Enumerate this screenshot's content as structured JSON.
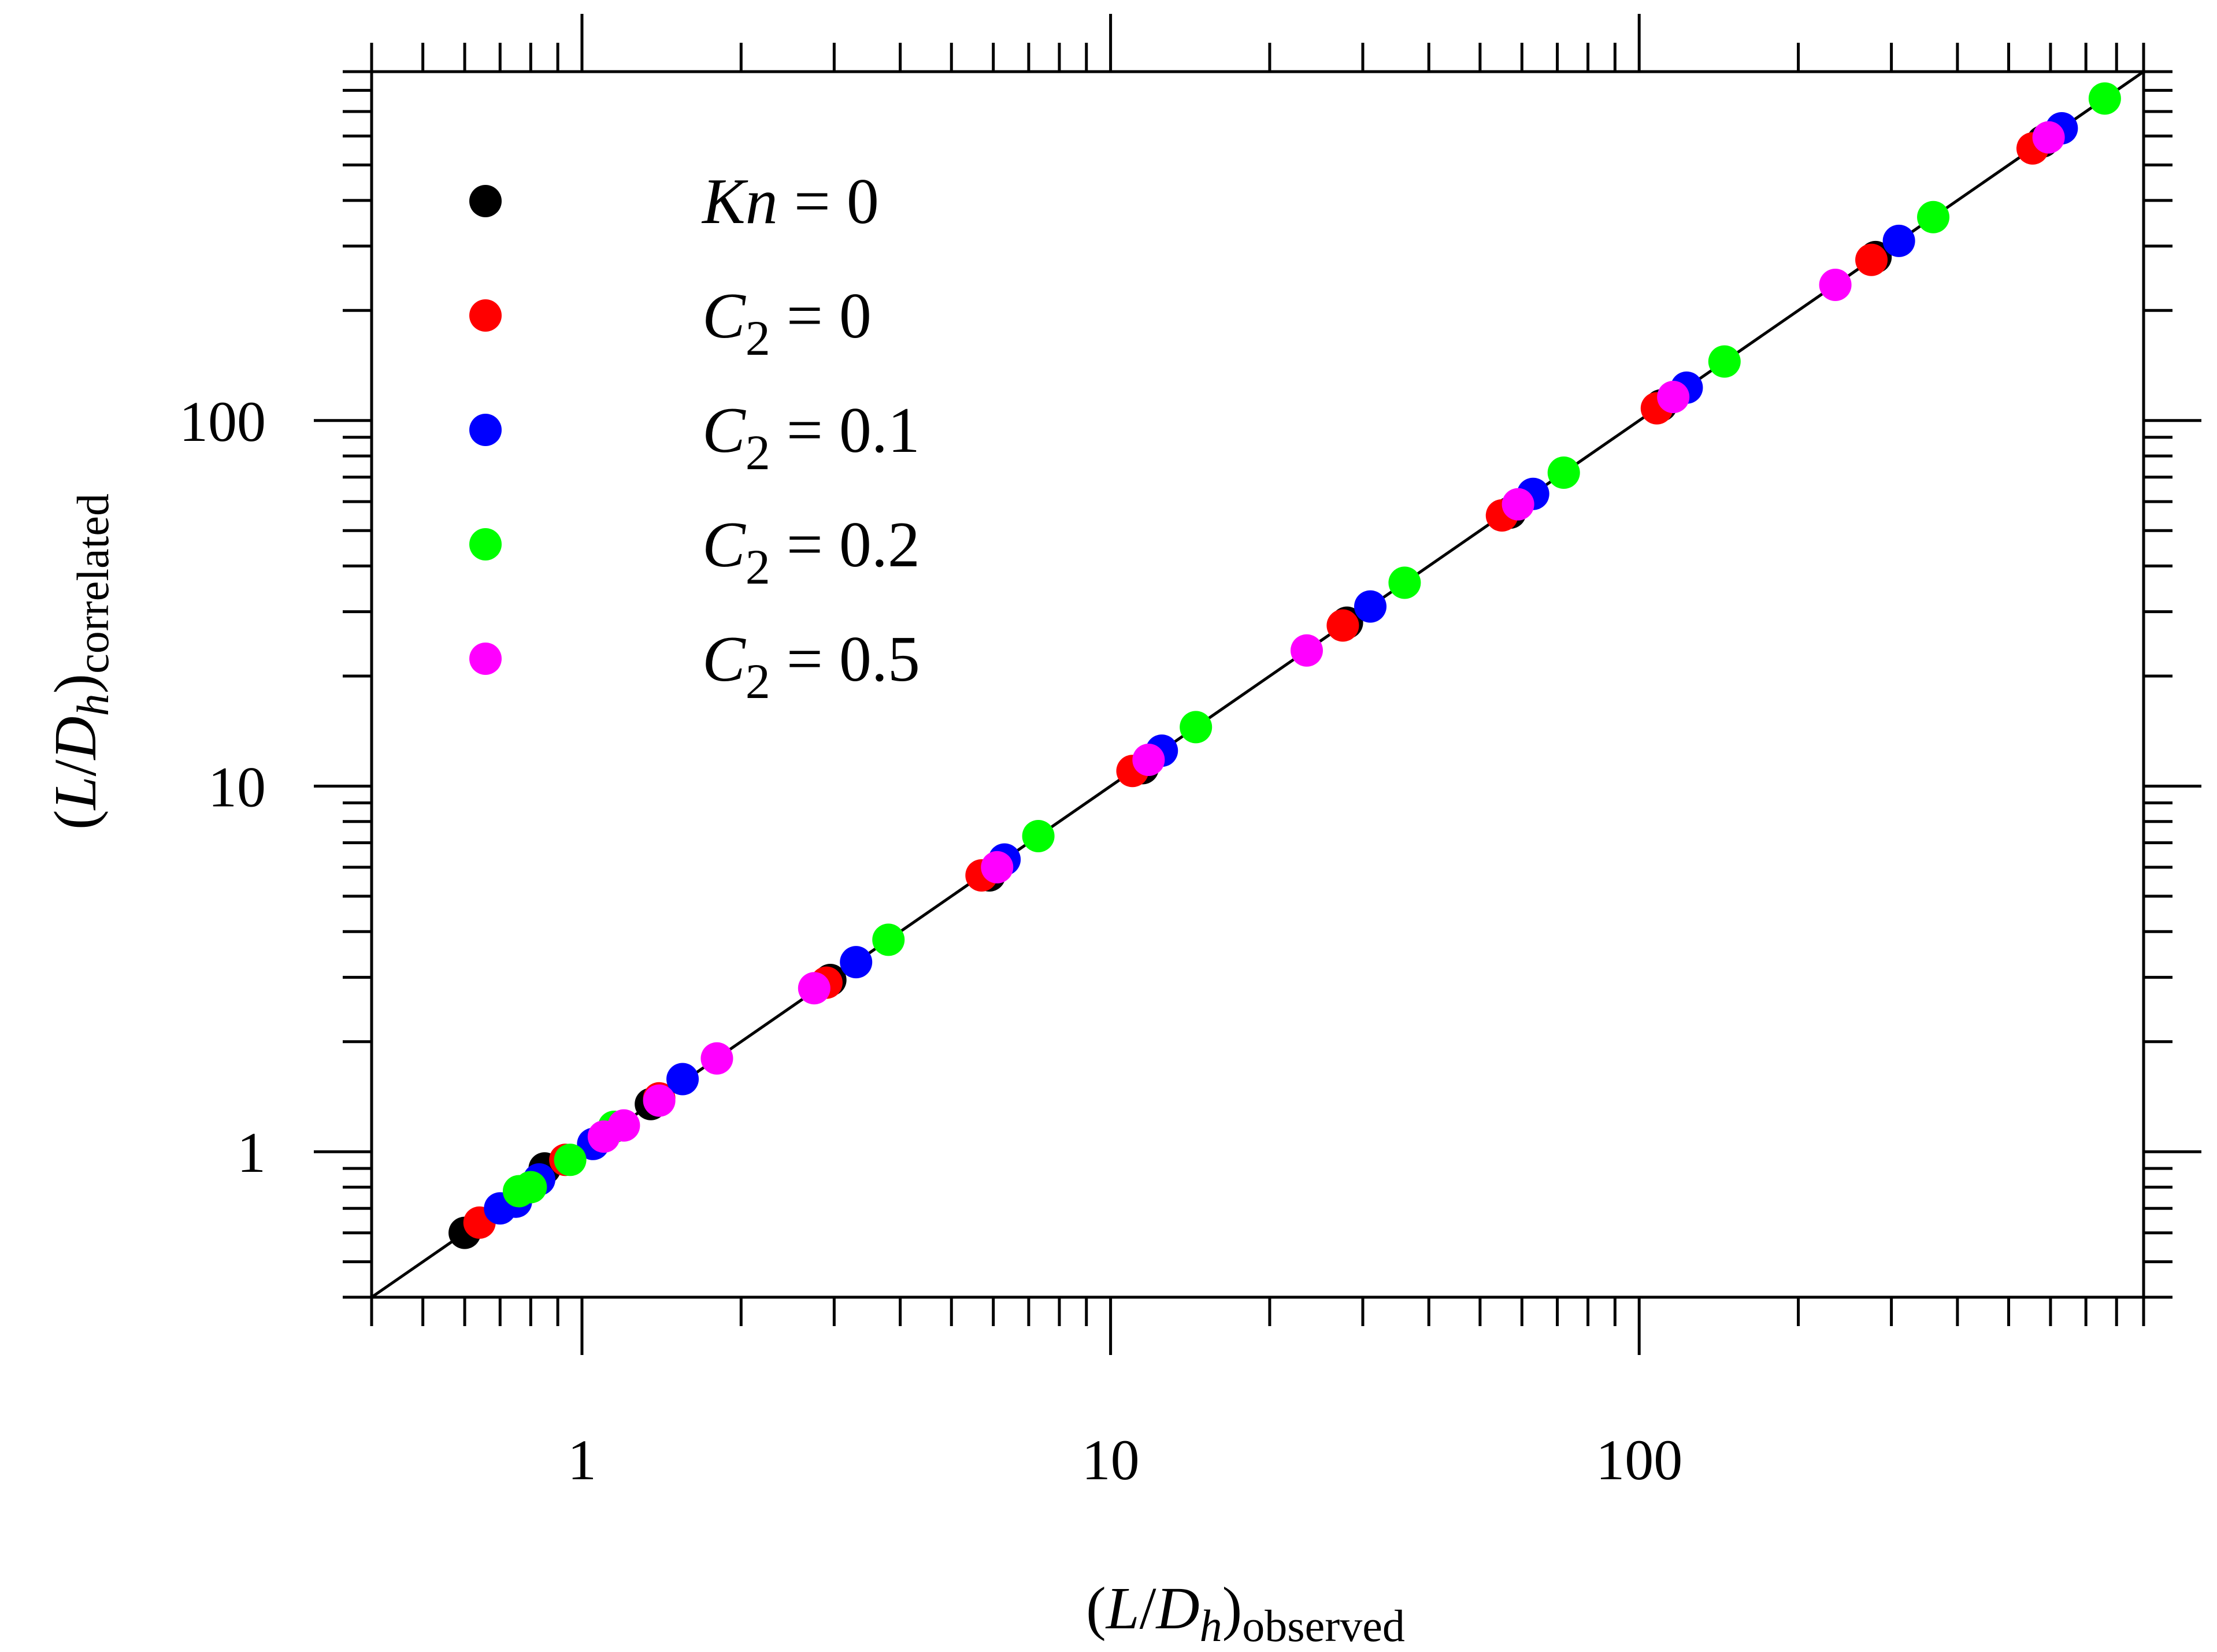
{
  "chart_data": {
    "type": "scatter",
    "xscale": "log",
    "yscale": "log",
    "xlim": [
      0.4,
      900
    ],
    "ylim": [
      0.4,
      900
    ],
    "xticks": [
      1,
      10,
      100
    ],
    "yticks": [
      1,
      10,
      100
    ],
    "xtick_labels": [
      "1",
      "10",
      "100"
    ],
    "ytick_labels": [
      "1",
      "10",
      "100"
    ],
    "xlabel": {
      "open": "(",
      "var1": "L",
      "slash": "/",
      "var2": "D",
      "var_sub": "h",
      "close": ")",
      "sub": "observed"
    },
    "ylabel": {
      "open": "(",
      "var1": "L",
      "slash": "/",
      "var2": "D",
      "var_sub": "h",
      "close": ")",
      "sub": "correlated"
    },
    "legend_position": "top-left",
    "reference_line": {
      "type": "identity",
      "color": "#000000"
    },
    "series": [
      {
        "name": "Kn = 0",
        "label": {
          "var": "Kn",
          "sub": "",
          "rest": " = 0"
        },
        "color": "#000000",
        "points": [
          [
            0.6,
            0.6
          ],
          [
            0.85,
            0.9
          ],
          [
            1.35,
            1.35
          ],
          [
            2.95,
            2.95
          ],
          [
            5.9,
            5.7
          ],
          [
            11.5,
            11.2
          ],
          [
            28,
            28
          ],
          [
            57,
            56
          ],
          [
            110,
            110
          ],
          [
            280,
            280
          ],
          [
            580,
            580
          ]
        ]
      },
      {
        "name": "C2 = 0",
        "label": {
          "var": "C",
          "sub": "2",
          "rest": " = 0"
        },
        "color": "#ff0000",
        "points": [
          [
            0.64,
            0.64
          ],
          [
            0.93,
            0.95
          ],
          [
            1.4,
            1.4
          ],
          [
            2.9,
            2.9
          ],
          [
            5.7,
            5.7
          ],
          [
            11,
            11
          ],
          [
            27.5,
            27.5
          ],
          [
            55,
            55
          ],
          [
            108,
            108
          ],
          [
            275,
            275
          ],
          [
            555,
            555
          ]
        ]
      },
      {
        "name": "C2 = 0.1",
        "label": {
          "var": "C",
          "sub": "2",
          "rest": " = 0.1"
        },
        "color": "#0000ff",
        "points": [
          [
            0.7,
            0.7
          ],
          [
            0.75,
            0.73
          ],
          [
            0.83,
            0.84
          ],
          [
            1.05,
            1.05
          ],
          [
            1.55,
            1.58
          ],
          [
            3.3,
            3.3
          ],
          [
            6.3,
            6.3
          ],
          [
            12.5,
            12.5
          ],
          [
            31,
            31
          ],
          [
            63,
            63
          ],
          [
            123,
            123
          ],
          [
            310,
            310
          ],
          [
            630,
            630
          ]
        ]
      },
      {
        "name": "C2 = 0.2",
        "label": {
          "var": "C",
          "sub": "2",
          "rest": " = 0.2"
        },
        "color": "#00ff00",
        "points": [
          [
            0.76,
            0.78
          ],
          [
            0.8,
            0.8
          ],
          [
            0.95,
            0.95
          ],
          [
            1.15,
            1.17
          ],
          [
            3.8,
            3.8
          ],
          [
            7.3,
            7.3
          ],
          [
            14.5,
            14.5
          ],
          [
            36,
            36
          ],
          [
            72,
            72
          ],
          [
            145,
            145
          ],
          [
            360,
            360
          ],
          [
            760,
            760
          ]
        ]
      },
      {
        "name": "C2 = 0.5",
        "label": {
          "var": "C",
          "sub": "2",
          "rest": " = 0.5"
        },
        "color": "#ff00ff",
        "points": [
          [
            1.1,
            1.1
          ],
          [
            1.2,
            1.18
          ],
          [
            1.4,
            1.38
          ],
          [
            1.8,
            1.8
          ],
          [
            2.75,
            2.8
          ],
          [
            6.1,
            6
          ],
          [
            11.8,
            11.8
          ],
          [
            23.5,
            23.5
          ],
          [
            59,
            59
          ],
          [
            116,
            116
          ],
          [
            235,
            235
          ],
          [
            595,
            595
          ]
        ]
      }
    ]
  }
}
